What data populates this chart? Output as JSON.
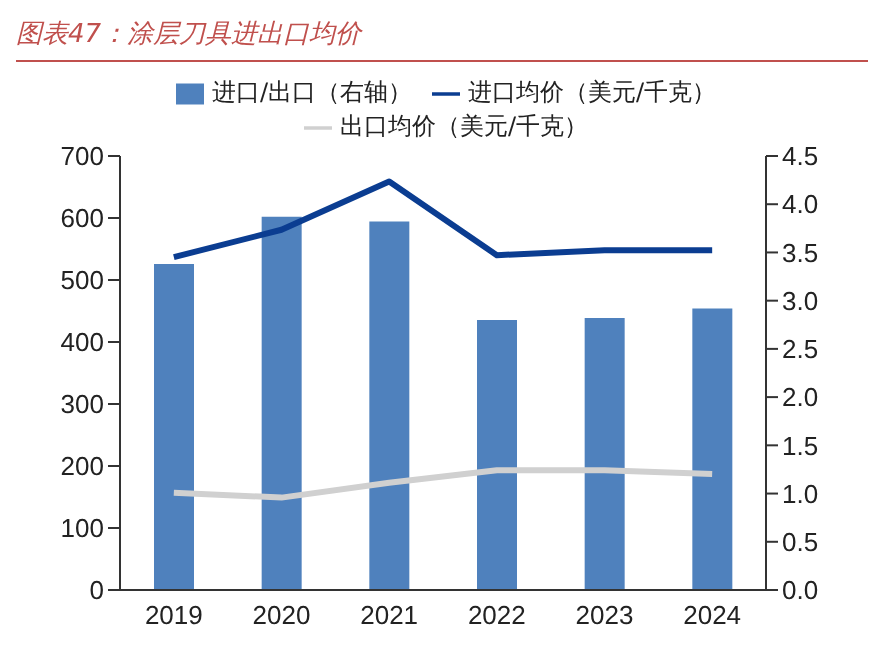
{
  "chart_data": {
    "type": "bar",
    "title": "图表47：涂层刀具进出口均价",
    "categories": [
      "2019",
      "2020",
      "2021",
      "2022",
      "2023",
      "2024"
    ],
    "series": [
      {
        "name": "进口/出口（右轴）",
        "axis": "y2",
        "color": "#4f81bd",
        "values": [
          3.38,
          3.87,
          3.82,
          2.8,
          2.82,
          2.92
        ]
      },
      {
        "name": "进口均价（美元/千克）",
        "type": "line",
        "color": "#0b3d91",
        "values": [
          537,
          581,
          659,
          540,
          548,
          548
        ]
      },
      {
        "name": "出口均价（美元/千克）",
        "type": "line",
        "color": "#d0d0d0",
        "values": [
          157,
          149,
          173,
          193,
          193,
          187
        ]
      }
    ],
    "ylim": [
      0,
      700
    ],
    "yticks": [
      0,
      100,
      200,
      300,
      400,
      500,
      600,
      700
    ],
    "y2lim": [
      0,
      4.5
    ],
    "y2ticks": [
      {
        "value": 0,
        "label": "0.0"
      },
      {
        "value": 0.5,
        "label": "0.5"
      },
      {
        "value": 1,
        "label": "1.0"
      },
      {
        "value": 1.5,
        "label": "1.5"
      },
      {
        "value": 2,
        "label": "2.0"
      },
      {
        "value": 2.5,
        "label": "2.5"
      },
      {
        "value": 3,
        "label": "3.0"
      },
      {
        "value": 3.5,
        "label": "3.5"
      },
      {
        "value": 4,
        "label": "4.0"
      },
      {
        "value": 4.5,
        "label": "4.5"
      }
    ],
    "grid": false,
    "legend": "top",
    "marker": "none",
    "line_style": "solid"
  }
}
